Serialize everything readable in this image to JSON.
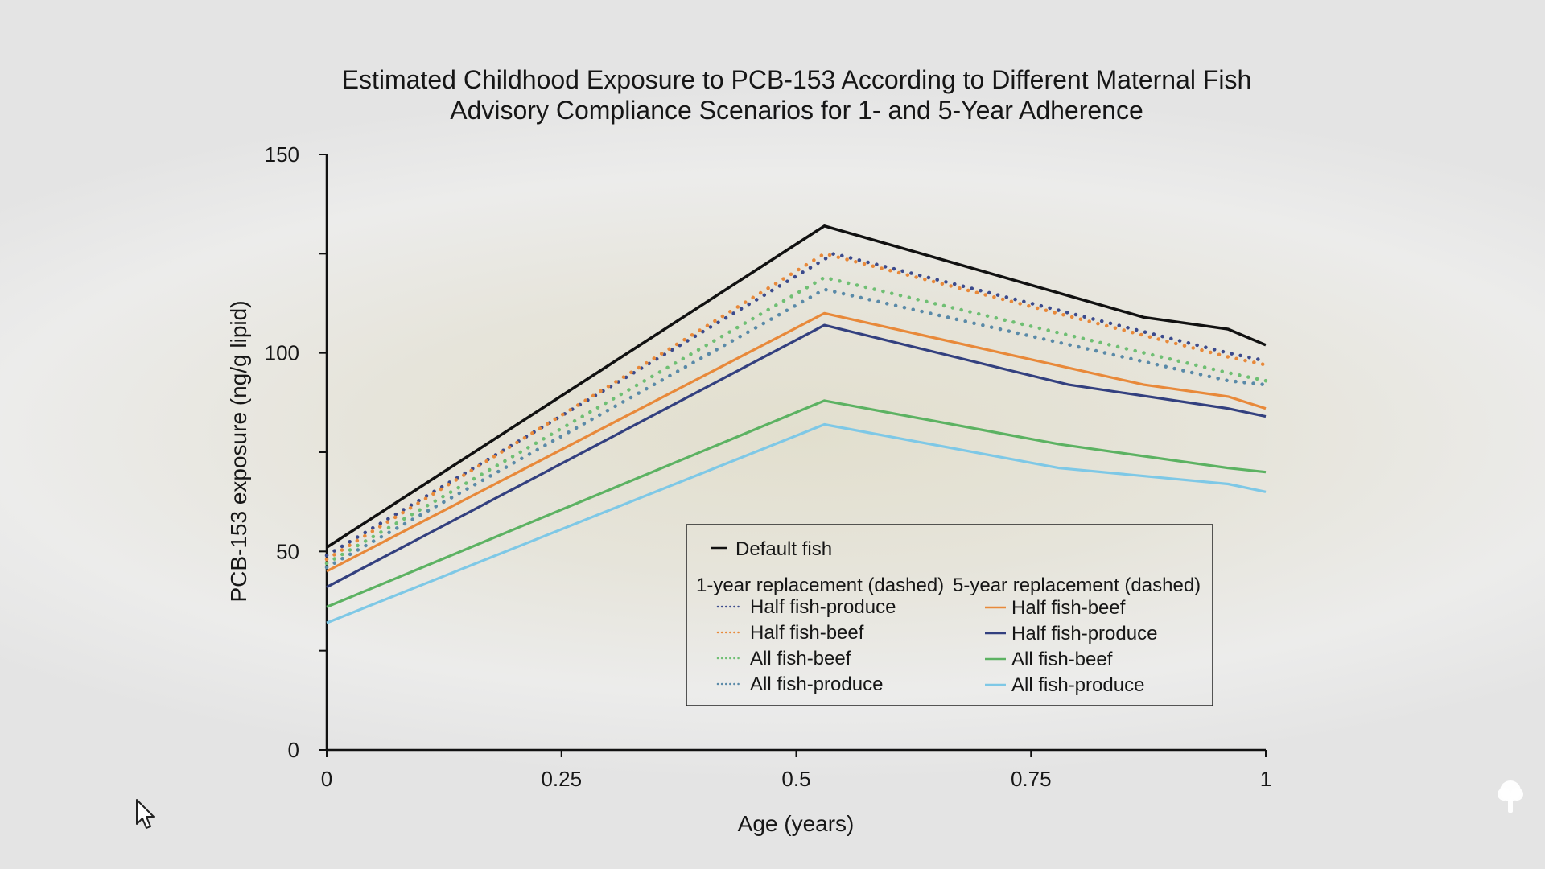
{
  "chart_data": {
    "type": "line",
    "title": [
      "Estimated Childhood Exposure to PCB-153 According to Different Maternal Fish",
      "Advisory Compliance Scenarios for 1- and 5-Year Adherence"
    ],
    "xlabel": "Age (years)",
    "ylabel": "PCB-153 exposure (ng/g lipid)",
    "xlim": [
      0,
      1
    ],
    "ylim": [
      0,
      150
    ],
    "xticks": [
      0,
      0.25,
      0.5,
      0.75,
      1
    ],
    "xtick_labels": [
      "0",
      "0.25",
      "0.5",
      "0.75",
      "1"
    ],
    "yticks": [
      0,
      50,
      100,
      150
    ],
    "ytick_labels": [
      "0",
      "50",
      "100",
      "150"
    ],
    "grid": false,
    "legend_position": "lower-right",
    "legend": {
      "default_label": "Default fish",
      "group1_header": "1-year replacement (dashed)",
      "group2_header": "5-year replacement (dashed)"
    },
    "series": [
      {
        "name": "Default fish",
        "group": "default",
        "style": "solid",
        "color": "#111111",
        "x": [
          0,
          0.53,
          0.87,
          0.96,
          1
        ],
        "y": [
          51,
          132,
          109,
          106,
          102
        ]
      },
      {
        "name": "Half fish-produce",
        "group": "1-year",
        "style": "dotted",
        "color": "#3b4a8c",
        "x": [
          0,
          0.54,
          0.96,
          1
        ],
        "y": [
          49,
          125,
          100,
          98
        ]
      },
      {
        "name": "Half fish-beef",
        "group": "1-year",
        "style": "dotted",
        "color": "#e8893a",
        "x": [
          0,
          0.53,
          0.96,
          1
        ],
        "y": [
          48,
          125,
          99,
          97
        ]
      },
      {
        "name": "All fish-beef",
        "group": "1-year",
        "style": "dotted",
        "color": "#6fbf73",
        "x": [
          0,
          0.53,
          0.96,
          1
        ],
        "y": [
          47,
          119,
          95,
          93
        ]
      },
      {
        "name": "All fish-produce",
        "group": "1-year",
        "style": "dotted",
        "color": "#5a8aa8",
        "x": [
          0,
          0.53,
          0.96,
          1
        ],
        "y": [
          46,
          116,
          93,
          92
        ]
      },
      {
        "name": "Half fish-beef",
        "group": "5-year",
        "style": "solid",
        "color": "#e8893a",
        "x": [
          0,
          0.53,
          0.87,
          0.96,
          1
        ],
        "y": [
          45,
          110,
          92,
          89,
          86
        ]
      },
      {
        "name": "Half fish-produce",
        "group": "5-year",
        "style": "solid",
        "color": "#33407f",
        "x": [
          0,
          0.53,
          0.79,
          0.96,
          1
        ],
        "y": [
          41,
          107,
          92,
          86,
          84
        ]
      },
      {
        "name": "All fish-beef",
        "group": "5-year",
        "style": "solid",
        "color": "#5cb262",
        "x": [
          0,
          0.53,
          0.78,
          0.96,
          1
        ],
        "y": [
          36,
          88,
          77,
          71,
          70
        ]
      },
      {
        "name": "All fish-produce",
        "group": "5-year",
        "style": "solid",
        "color": "#7ec8e6",
        "x": [
          0,
          0.53,
          0.78,
          0.96,
          1
        ],
        "y": [
          32,
          82,
          71,
          67,
          65
        ]
      }
    ]
  },
  "colors": {
    "axis": "#111111",
    "text": "#161616",
    "legend_border": "#222222",
    "watermark": "#ffffff"
  },
  "icons": {
    "cursor": "mouse-pointer-icon",
    "watermark": "tree-logo-icon"
  }
}
